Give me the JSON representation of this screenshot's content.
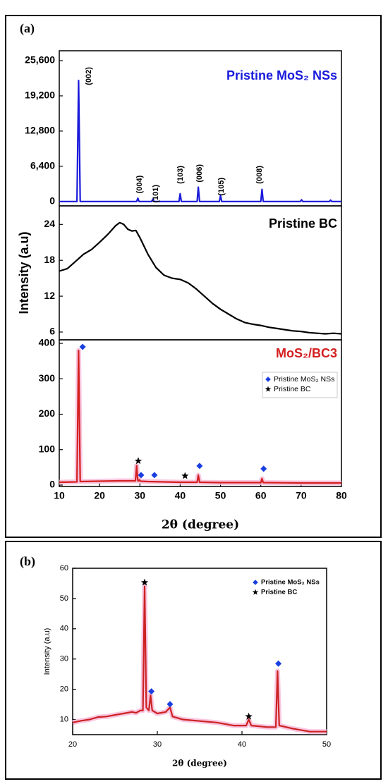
{
  "chart_data": [
    {
      "type": "line",
      "panel_label": "(a)",
      "title": "Pristine MoS₂ NSs",
      "title_color": "#1a1adb",
      "xlim": [
        10,
        80
      ],
      "ylim": [
        -800,
        27400
      ],
      "yticks": [
        0,
        {
          "value": 6400,
          "label": "6,400"
        },
        {
          "value": 12800,
          "label": "12,800"
        },
        {
          "value": 19200,
          "label": "19,200"
        },
        {
          "value": 25600,
          "label": "25,600"
        }
      ],
      "series": [
        {
          "color": "#1a1adb",
          "x": [
            10,
            14.4,
            14.8,
            15.2,
            20,
            29.2,
            29.5,
            29.8,
            32.9,
            33.2,
            33.5,
            39.7,
            40.0,
            40.3,
            44.2,
            44.5,
            44.8,
            49.7,
            50.0,
            50.3,
            60.0,
            60.3,
            60.6,
            69.8,
            70.1,
            70.4,
            77.0,
            77.3,
            77.6,
            80
          ],
          "values": [
            0,
            0,
            22000,
            0,
            0,
            0,
            600,
            0,
            0,
            400,
            0,
            0,
            1400,
            0,
            0,
            2600,
            0,
            0,
            1100,
            0,
            0,
            2200,
            0,
            0,
            300,
            0,
            0,
            250,
            0,
            0
          ]
        }
      ],
      "annotations": [
        {
          "text": "(002)",
          "x": 17.4,
          "y": 22800
        },
        {
          "text": "(004)",
          "x": 30.0,
          "y": 3100
        },
        {
          "text": "(101)",
          "x": 34.0,
          "y": 1400
        },
        {
          "text": "(103)",
          "x": 40.1,
          "y": 4860
        },
        {
          "text": "(006)",
          "x": 44.8,
          "y": 5120
        },
        {
          "text": "(105)",
          "x": 50.3,
          "y": 2700
        },
        {
          "text": "(008)",
          "x": 59.7,
          "y": 4860
        }
      ]
    },
    {
      "type": "line",
      "title": "Pristine BC",
      "title_color": "#000000",
      "ylabel": "Intensity (a.u)",
      "xlim": [
        10,
        80
      ],
      "ylim": [
        4.7,
        27.1
      ],
      "yticks": [
        6,
        12,
        18,
        24
      ],
      "series": [
        {
          "color": "#000000",
          "x": [
            10,
            12,
            14,
            16,
            18,
            20,
            22,
            24,
            25,
            26,
            27,
            28,
            29,
            30,
            32,
            34,
            36,
            38,
            40,
            42,
            44,
            46,
            48,
            50,
            52,
            54,
            56,
            58,
            60,
            62,
            64,
            66,
            68,
            70,
            72,
            74,
            76,
            78,
            80
          ],
          "values": [
            16.2,
            16.6,
            17.8,
            19,
            19.8,
            21,
            22.3,
            23.8,
            24.3,
            24.0,
            23.2,
            22.9,
            23,
            21.8,
            19,
            16.8,
            15.5,
            15.0,
            14.8,
            14.2,
            13.2,
            12,
            10.8,
            9.8,
            9,
            8.2,
            7.6,
            7.3,
            7.1,
            6.8,
            6.6,
            6.4,
            6.2,
            6.1,
            5.9,
            5.8,
            5.7,
            5.8,
            5.7
          ]
        }
      ]
    },
    {
      "type": "line",
      "title": "MoS₂/BC3",
      "title_color": "#d42020",
      "xlabel": "2θ (degree)",
      "legend": "upper right",
      "xlim": [
        10,
        80
      ],
      "ylim": [
        -4,
        410
      ],
      "xticks": [
        10,
        20,
        30,
        40,
        50,
        60,
        70,
        80
      ],
      "yticks": [
        0,
        100,
        200,
        300,
        400
      ],
      "series": [
        {
          "color": "#d42020",
          "band_color": "#f7b8d8",
          "x": [
            10,
            14.4,
            14.8,
            15.2,
            20,
            25,
            28.9,
            29.2,
            29.5,
            29.7,
            29.9,
            30.1,
            32,
            40,
            44.2,
            44.5,
            44.8,
            50,
            60.0,
            60.3,
            60.6,
            70,
            80
          ],
          "values": [
            8,
            9,
            380,
            10,
            11,
            12,
            12,
            55,
            12,
            12,
            15,
            11,
            10,
            8,
            8,
            28,
            8,
            7,
            7,
            18,
            7,
            6,
            6
          ]
        },
        {
          "name": "Pristine MoS₂ NSs",
          "color": "#1a3fe0",
          "marker": "diamond",
          "x": [
            15.8,
            30.3,
            33.6,
            44.8,
            60.7
          ],
          "values": [
            390,
            28,
            28,
            54,
            46
          ]
        },
        {
          "name": "Pristine BC",
          "color": "#000000",
          "marker": "star",
          "x": [
            29.6,
            41.2
          ],
          "values": [
            68,
            26
          ]
        }
      ]
    },
    {
      "type": "line",
      "panel_label": "(b)",
      "xlabel": "2θ (degree)",
      "ylabel": "Intensity (a.u)",
      "legend": "upper right",
      "xlim": [
        20,
        50
      ],
      "ylim": [
        5,
        60
      ],
      "xticks": [
        20,
        30,
        40,
        50
      ],
      "yticks": [
        10,
        20,
        30,
        40,
        50,
        60
      ],
      "series": [
        {
          "color": "#cc2222",
          "band_color": "#f7b8d8",
          "x": [
            20,
            21,
            22,
            23,
            24,
            25,
            26,
            27,
            27.5,
            28,
            28.3,
            28.5,
            28.7,
            29,
            29.2,
            29.4,
            30,
            31,
            31.5,
            31.8,
            33,
            35,
            37,
            39,
            40.5,
            40.8,
            41.1,
            43,
            44,
            44.2,
            44.4,
            46,
            48,
            50
          ],
          "values": [
            9,
            9.6,
            10,
            10.8,
            11,
            11.5,
            12,
            12.5,
            12.2,
            13,
            13,
            54,
            14,
            13,
            18,
            13,
            12,
            12.5,
            14,
            11,
            10,
            9.5,
            9,
            8,
            8,
            10,
            8,
            7.5,
            7.5,
            26,
            8,
            7,
            6,
            6
          ]
        },
        {
          "name": "Pristine MoS₂ NSs",
          "color": "#1a3fe0",
          "marker": "diamond",
          "x": [
            29.3,
            31.5,
            44.3
          ],
          "values": [
            19.3,
            15.1,
            28.5
          ]
        },
        {
          "name": "Pristine BC",
          "color": "#000000",
          "marker": "star",
          "x": [
            28.5,
            40.8
          ],
          "values": [
            55.3,
            11
          ]
        }
      ]
    }
  ]
}
